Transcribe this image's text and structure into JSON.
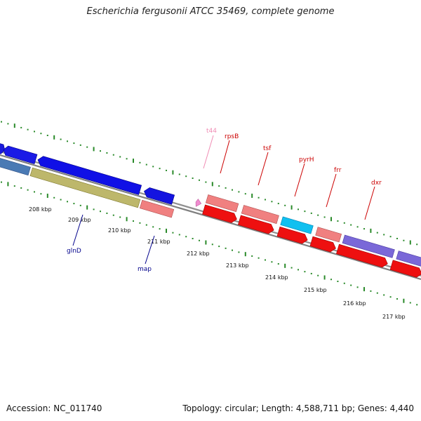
{
  "title": "Escherichia fergusonii ATCC 35469, complete genome",
  "footer": {
    "accession": "Accession: NC_011740",
    "summary": "Topology: circular; Length: 4,588,711 bp; Genes: 4,440"
  },
  "colors": {
    "backbone": "#808080",
    "ticks": "#2a8a2a",
    "label_red": "#cc0000",
    "label_blue": "#00008b",
    "label_pink": "#f08cb4"
  },
  "scale_labels": [
    "208 kbp",
    "209 kbp",
    "210 kbp",
    "211 kbp",
    "212 kbp",
    "213 kbp",
    "214 kbp",
    "215 kbp",
    "216 kbp",
    "217 kbp"
  ],
  "gene_labels": {
    "t44": "t44",
    "rpsB": "rpsB",
    "tsf": "tsf",
    "pyrH": "pyrH",
    "frr": "frr",
    "dxr": "dxr",
    "glnD": "glnD",
    "map": "map"
  }
}
